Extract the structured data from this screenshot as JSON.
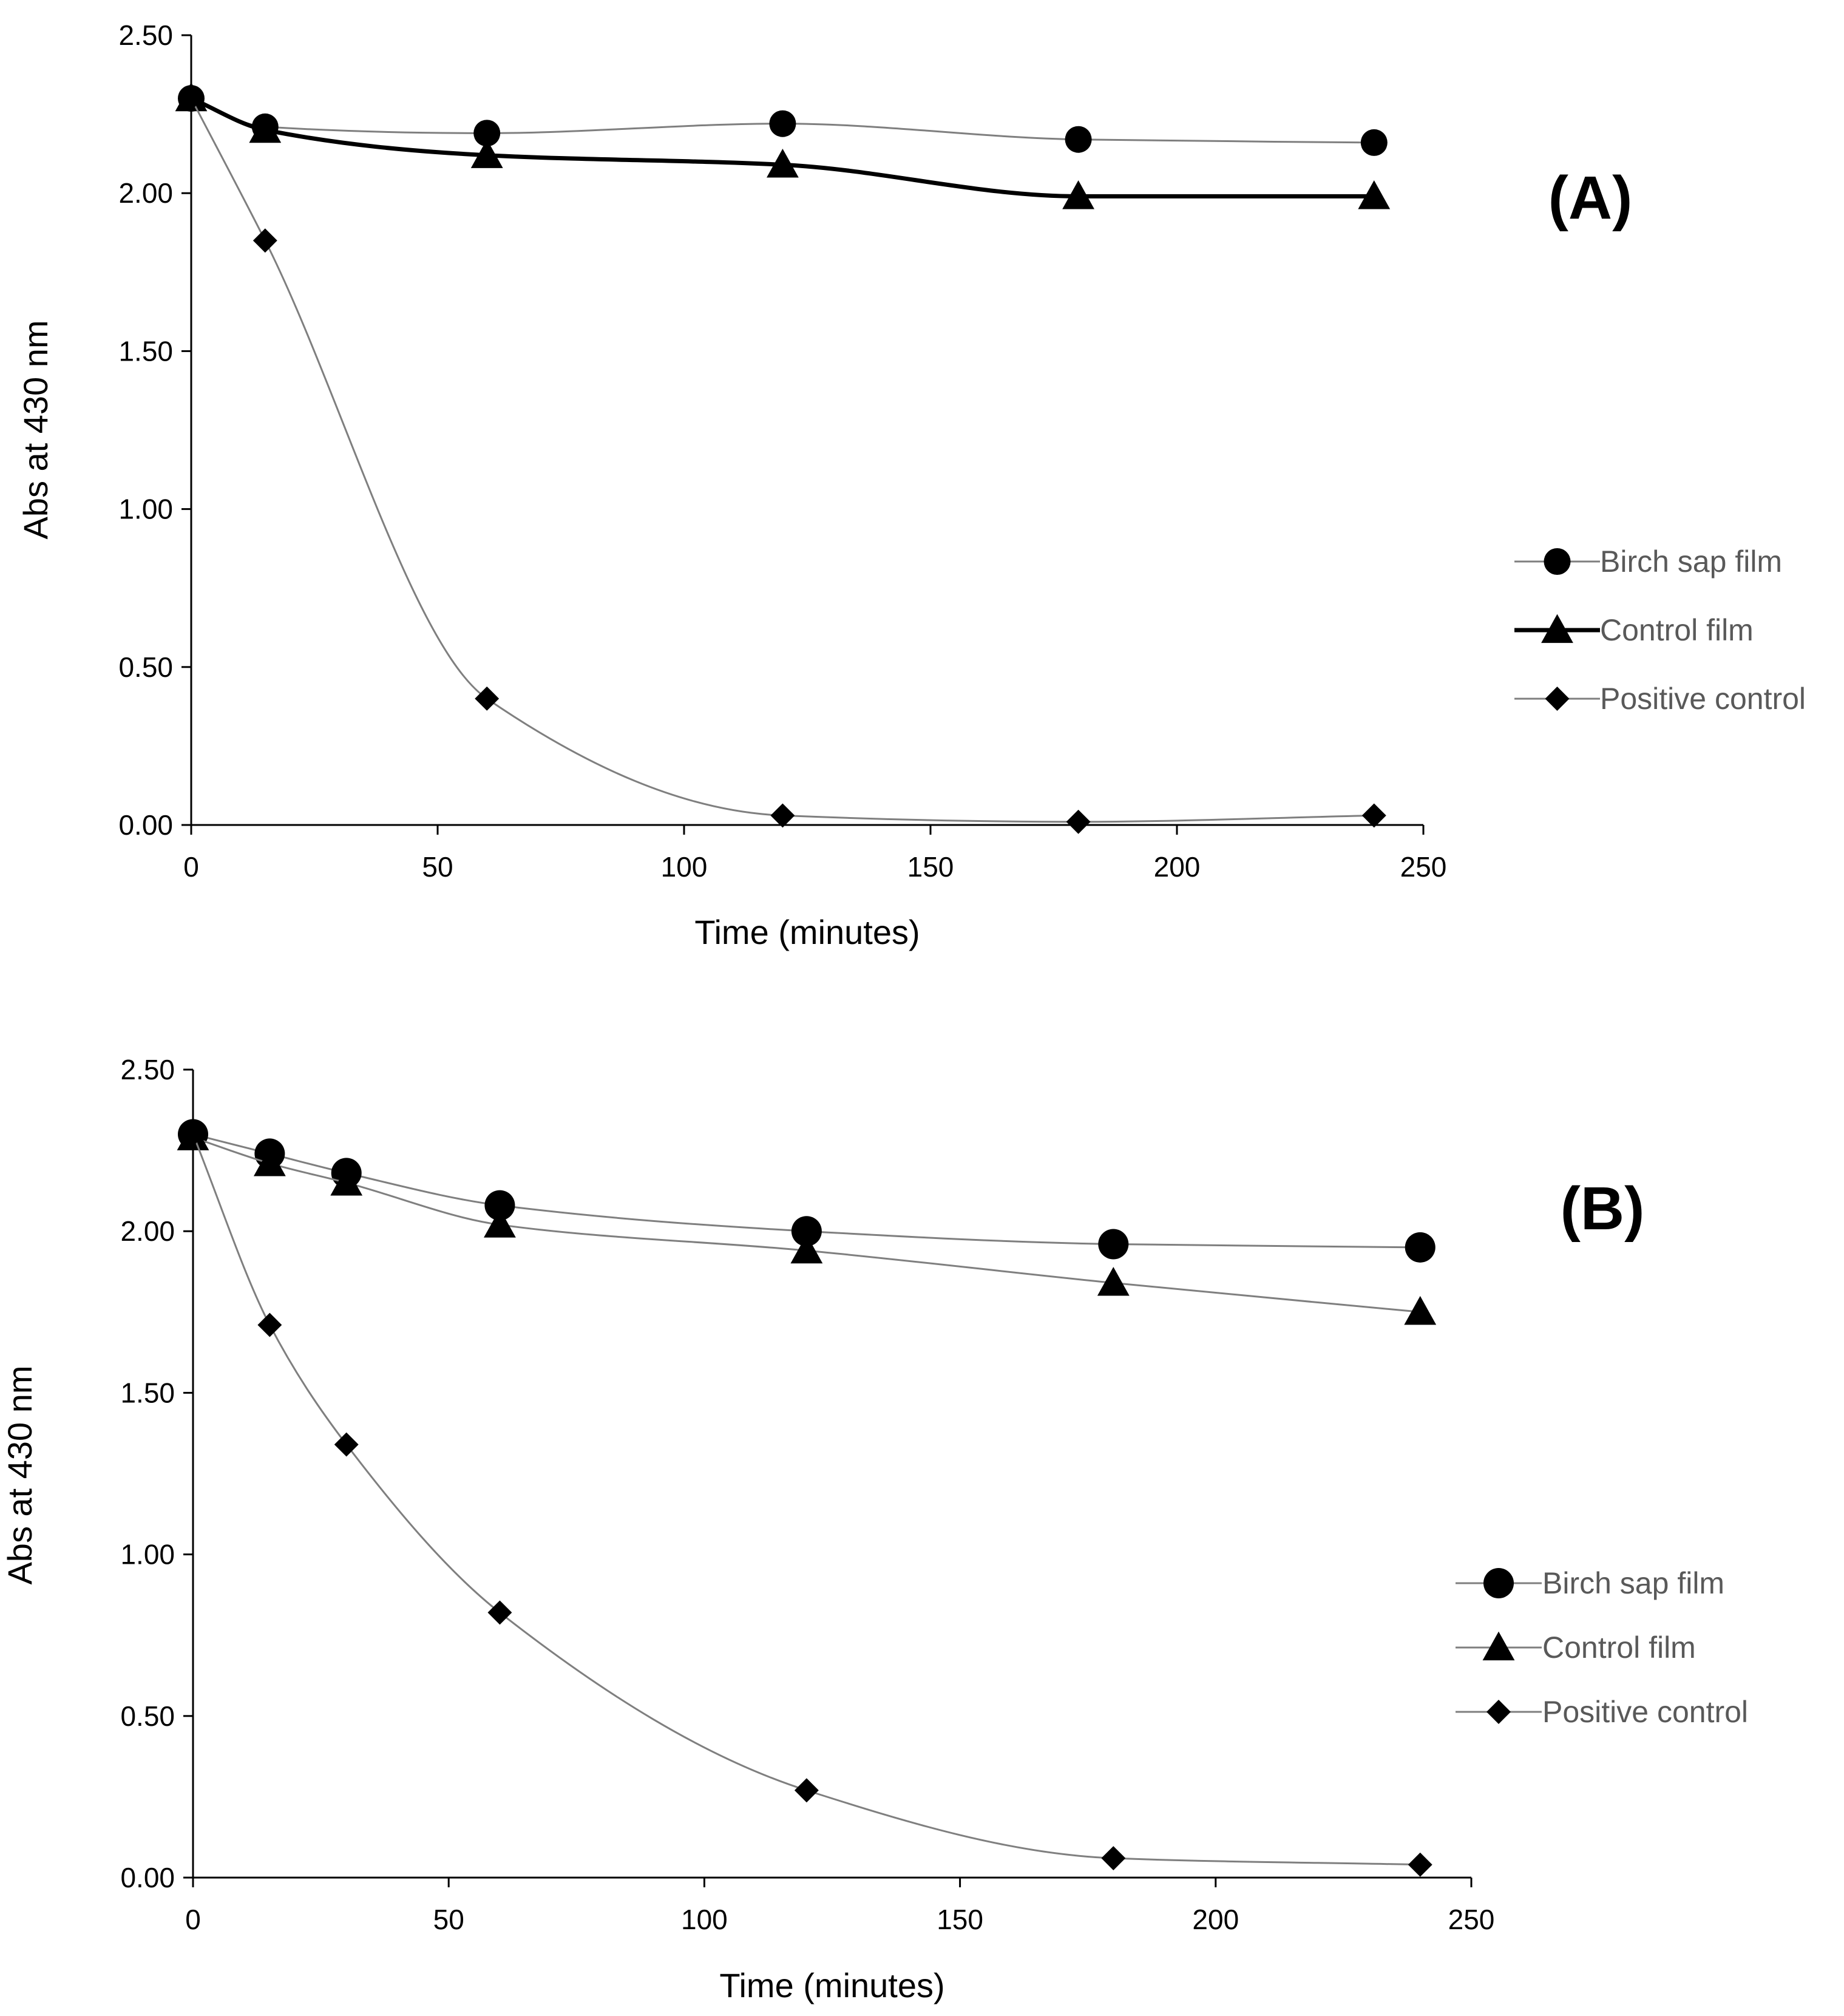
{
  "chart_data": [
    {
      "type": "line",
      "panel_label": "(A)",
      "xlabel": "Time (minutes)",
      "ylabel": "Abs at 430 nm",
      "xlim": [
        0,
        250
      ],
      "ylim": [
        0,
        2.5
      ],
      "x_ticks": [
        "0",
        "50",
        "100",
        "150",
        "200",
        "250"
      ],
      "y_ticks": [
        "0.00",
        "0.50",
        "1.00",
        "1.50",
        "2.00",
        "2.50"
      ],
      "grid": false,
      "legend_position": "right",
      "series": [
        {
          "name": "Birch sap film",
          "marker": "circle",
          "line_color": "#7f7f7f",
          "x": [
            0,
            15,
            60,
            120,
            180,
            240
          ],
          "y": [
            2.3,
            2.21,
            2.19,
            2.22,
            2.17,
            2.16
          ]
        },
        {
          "name": "Control film",
          "marker": "triangle",
          "line_color": "#000000",
          "x": [
            0,
            15,
            60,
            120,
            180,
            240
          ],
          "y": [
            2.3,
            2.2,
            2.12,
            2.09,
            1.99,
            1.99
          ]
        },
        {
          "name": "Positive control",
          "marker": "diamond",
          "line_color": "#7f7f7f",
          "x": [
            0,
            15,
            60,
            120,
            180,
            240
          ],
          "y": [
            2.3,
            1.85,
            0.4,
            0.03,
            0.01,
            0.03
          ]
        }
      ]
    },
    {
      "type": "line",
      "panel_label": "(B)",
      "xlabel": "Time (minutes)",
      "ylabel": "Abs at 430 nm",
      "xlim": [
        0,
        250
      ],
      "ylim": [
        0,
        2.5
      ],
      "x_ticks": [
        "0",
        "50",
        "100",
        "150",
        "200",
        "250"
      ],
      "y_ticks": [
        "0.00",
        "0.50",
        "1.00",
        "1.50",
        "2.00",
        "2.50"
      ],
      "grid": false,
      "legend_position": "right",
      "series": [
        {
          "name": "Birch sap film",
          "marker": "circle",
          "line_color": "#7f7f7f",
          "x": [
            0,
            15,
            30,
            60,
            120,
            180,
            240
          ],
          "y": [
            2.3,
            2.24,
            2.18,
            2.08,
            2.0,
            1.96,
            1.95
          ]
        },
        {
          "name": "Control film",
          "marker": "triangle",
          "line_color": "#7f7f7f",
          "x": [
            0,
            15,
            30,
            60,
            120,
            180,
            240
          ],
          "y": [
            2.29,
            2.21,
            2.15,
            2.02,
            1.94,
            1.84,
            1.75
          ]
        },
        {
          "name": "Positive control",
          "marker": "diamond",
          "line_color": "#7f7f7f",
          "x": [
            0,
            15,
            30,
            60,
            120,
            180,
            240
          ],
          "y": [
            2.3,
            1.71,
            1.34,
            0.82,
            0.27,
            0.06,
            0.04
          ]
        }
      ]
    }
  ]
}
